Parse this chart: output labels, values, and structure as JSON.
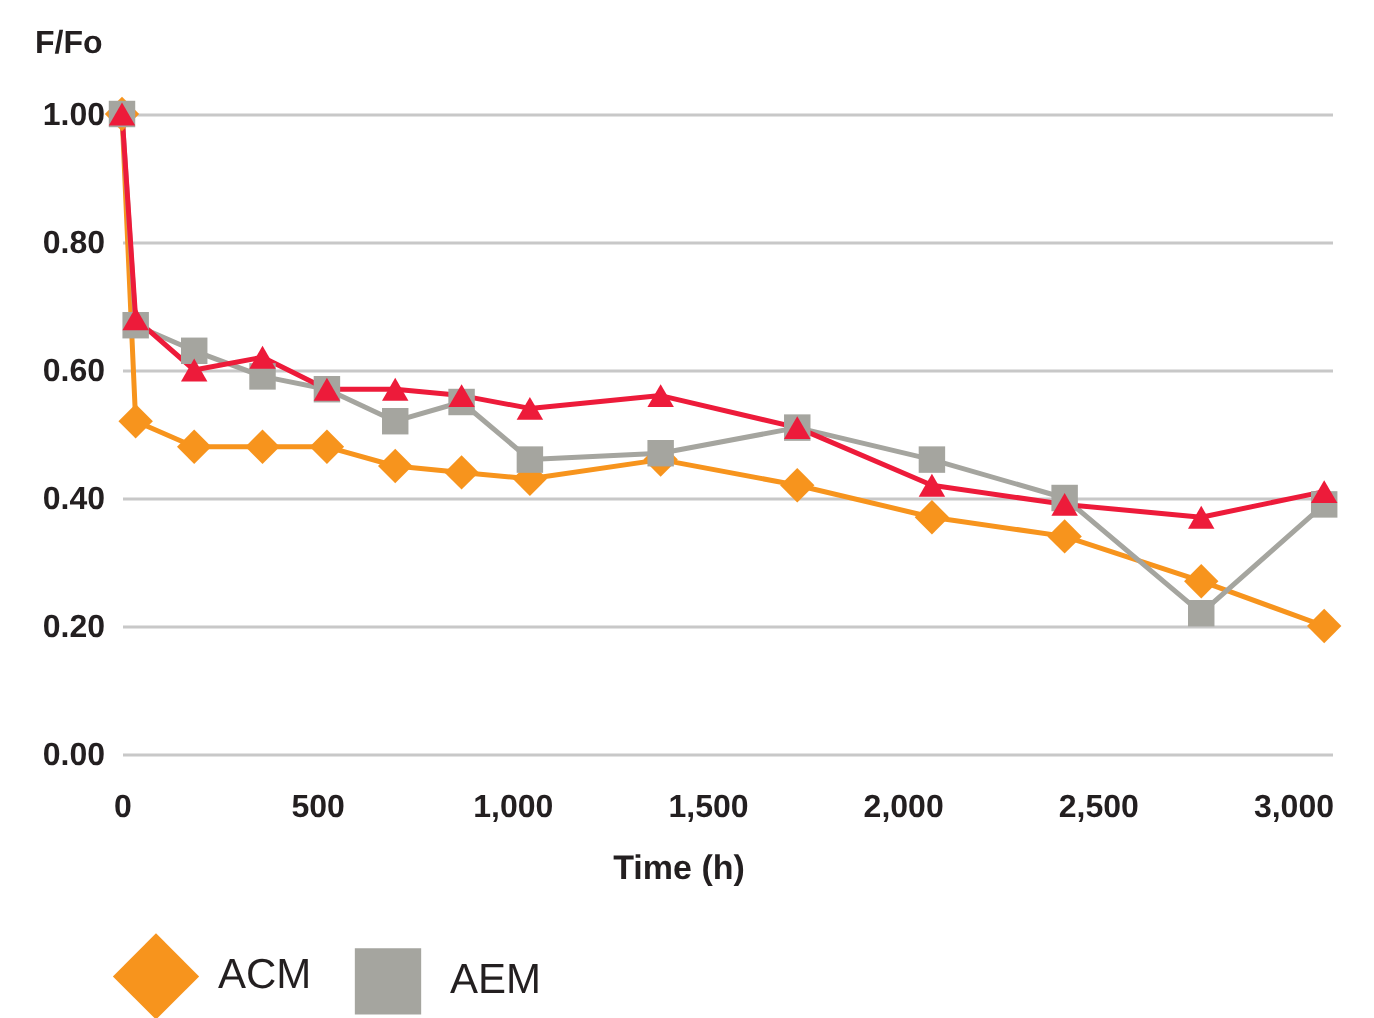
{
  "chart_data": {
    "type": "line",
    "x": [
      0,
      35,
      185,
      360,
      525,
      700,
      870,
      1045,
      1380,
      1730,
      2075,
      2415,
      2765,
      3080
    ],
    "series": [
      {
        "name": "ACM",
        "color": "#f7941d",
        "marker": "diamond",
        "values": [
          1.0,
          0.52,
          0.48,
          0.48,
          0.48,
          0.45,
          0.44,
          0.43,
          0.46,
          0.42,
          0.37,
          0.34,
          0.27,
          0.2
        ]
      },
      {
        "name": "AEM",
        "color": "#a5a59f",
        "marker": "square",
        "values": [
          1.0,
          0.67,
          0.63,
          0.59,
          0.57,
          0.52,
          0.55,
          0.46,
          0.47,
          0.51,
          0.46,
          0.4,
          0.22,
          0.39
        ]
      },
      {
        "color": "#ed1b3a",
        "marker": "triangle",
        "values": [
          1.0,
          0.68,
          0.6,
          0.62,
          0.57,
          0.57,
          0.56,
          0.54,
          0.56,
          0.51,
          0.42,
          0.39,
          0.37,
          0.41
        ]
      }
    ],
    "xlabel": "Time (h)",
    "ylabel": "F/Fo",
    "xlim": [
      0,
      3100
    ],
    "xticks": [
      0,
      500,
      {
        "value": 1000,
        "label": "1,000"
      },
      {
        "value": 1500,
        "label": "1,500"
      },
      {
        "value": 2000,
        "label": "2,000"
      },
      {
        "value": 2500,
        "label": "2,500"
      },
      {
        "value": 3000,
        "label": "3,000"
      }
    ],
    "ylim": [
      0,
      1.0
    ],
    "yticks": [
      {
        "value": 0,
        "label": "0.00"
      },
      {
        "value": 0.2,
        "label": "0.20"
      },
      {
        "value": 0.4,
        "label": "0.40"
      },
      {
        "value": 0.6,
        "label": "0.60"
      },
      {
        "value": 0.8,
        "label": "0.80"
      },
      {
        "value": 1.0,
        "label": "1.00"
      }
    ],
    "grid": "y",
    "legend": "bottom",
    "line_style": "solid"
  }
}
